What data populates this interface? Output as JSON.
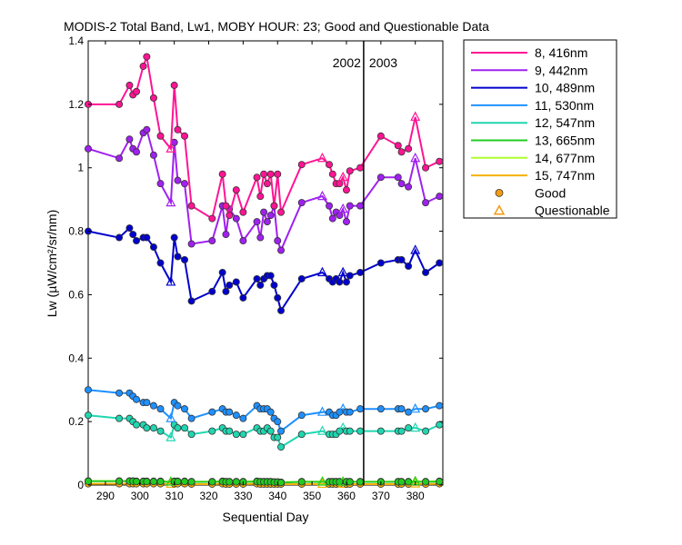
{
  "chart_data": {
    "type": "line",
    "title": "MODIS-2 Total Band,  Lw1, MOBY HOUR: 23;  Good and Questionable Data",
    "xlabel": "Sequential Day",
    "ylabel": "Lw (µW/cm²/sr/nm)",
    "xlim": [
      285,
      388
    ],
    "ylim": [
      0,
      1.4
    ],
    "xticks": [
      290,
      300,
      310,
      320,
      330,
      340,
      350,
      360,
      370,
      380
    ],
    "yticks": [
      0,
      0.2,
      0.4,
      0.6,
      0.8,
      1,
      1.2,
      1.4
    ],
    "ytick_labels": [
      "0",
      "0.2",
      "0.4",
      "0.6",
      "0.8",
      "1",
      "1.2",
      "1.4"
    ],
    "grid": false,
    "legend_position": "outside-right-top",
    "year_boundary": {
      "x": 365,
      "left_label": "2002",
      "right_label": "2003"
    },
    "x": [
      285,
      294,
      297,
      298,
      299,
      301,
      302,
      304,
      306,
      309,
      310,
      311,
      313,
      315,
      321,
      324,
      325,
      326,
      328,
      330,
      334,
      335,
      336,
      337,
      338,
      339,
      340,
      341,
      347,
      353,
      355,
      356,
      357,
      358,
      359,
      360,
      361,
      364,
      370,
      375,
      376,
      378,
      380,
      383,
      387
    ],
    "questionable_x": [
      309,
      353,
      359,
      380
    ],
    "series": [
      {
        "name": "8, 416nm",
        "color": "#ff1493",
        "values": [
          1.2,
          1.2,
          1.26,
          1.23,
          1.24,
          1.32,
          1.35,
          1.22,
          1.1,
          1.06,
          1.26,
          1.12,
          1.1,
          0.88,
          0.84,
          0.98,
          0.88,
          0.85,
          0.93,
          0.86,
          0.97,
          0.91,
          0.98,
          0.95,
          0.98,
          0.88,
          0.98,
          0.86,
          1.01,
          1.03,
          1.01,
          0.98,
          0.95,
          0.95,
          0.97,
          0.93,
          0.99,
          1.0,
          1.1,
          1.07,
          1.05,
          1.06,
          1.16,
          1.0,
          1.02
        ]
      },
      {
        "name": "9, 442nm",
        "color": "#a020f0",
        "values": [
          1.06,
          1.03,
          1.09,
          1.06,
          1.05,
          1.11,
          1.12,
          1.04,
          0.95,
          0.89,
          1.08,
          0.96,
          0.95,
          0.76,
          0.77,
          0.88,
          0.79,
          0.87,
          0.84,
          0.77,
          0.83,
          0.78,
          0.86,
          0.83,
          0.85,
          0.88,
          0.77,
          0.74,
          0.89,
          0.91,
          0.88,
          0.84,
          0.86,
          0.85,
          0.87,
          0.83,
          0.88,
          0.88,
          0.97,
          0.97,
          0.95,
          0.94,
          1.03,
          0.89,
          0.91
        ]
      },
      {
        "name": "10, 489nm",
        "color": "#0000cd",
        "values": [
          0.8,
          0.78,
          0.81,
          0.79,
          0.77,
          0.78,
          0.78,
          0.75,
          0.7,
          0.64,
          0.78,
          0.72,
          0.71,
          0.58,
          0.61,
          0.67,
          0.61,
          0.63,
          0.64,
          0.59,
          0.65,
          0.63,
          0.65,
          0.66,
          0.66,
          0.63,
          0.59,
          0.55,
          0.65,
          0.67,
          0.65,
          0.64,
          0.65,
          0.64,
          0.67,
          0.64,
          0.66,
          0.67,
          0.7,
          0.71,
          0.71,
          0.69,
          0.74,
          0.67,
          0.7
        ]
      },
      {
        "name": "11, 530nm",
        "color": "#1e90ff",
        "values": [
          0.3,
          0.29,
          0.29,
          0.28,
          0.27,
          0.26,
          0.26,
          0.25,
          0.24,
          0.21,
          0.26,
          0.25,
          0.24,
          0.21,
          0.23,
          0.24,
          0.23,
          0.23,
          0.22,
          0.21,
          0.25,
          0.24,
          0.24,
          0.24,
          0.23,
          0.21,
          0.2,
          0.17,
          0.22,
          0.23,
          0.23,
          0.22,
          0.22,
          0.23,
          0.24,
          0.23,
          0.23,
          0.24,
          0.24,
          0.24,
          0.24,
          0.23,
          0.24,
          0.24,
          0.25
        ]
      },
      {
        "name": "12, 547nm",
        "color": "#20d6b0",
        "values": [
          0.22,
          0.21,
          0.21,
          0.2,
          0.19,
          0.19,
          0.18,
          0.18,
          0.17,
          0.15,
          0.19,
          0.18,
          0.18,
          0.16,
          0.17,
          0.18,
          0.17,
          0.17,
          0.16,
          0.16,
          0.18,
          0.17,
          0.17,
          0.18,
          0.17,
          0.15,
          0.15,
          0.12,
          0.16,
          0.17,
          0.16,
          0.16,
          0.16,
          0.17,
          0.18,
          0.17,
          0.17,
          0.17,
          0.17,
          0.17,
          0.17,
          0.18,
          0.18,
          0.17,
          0.19
        ]
      },
      {
        "name": "13, 665nm",
        "color": "#22cc22",
        "values": [
          0.012,
          0.012,
          0.012,
          0.012,
          0.011,
          0.011,
          0.011,
          0.011,
          0.011,
          0.01,
          0.011,
          0.011,
          0.011,
          0.01,
          0.01,
          0.011,
          0.01,
          0.01,
          0.01,
          0.01,
          0.011,
          0.01,
          0.01,
          0.01,
          0.01,
          0.009,
          0.009,
          0.008,
          0.01,
          0.01,
          0.01,
          0.01,
          0.01,
          0.01,
          0.01,
          0.01,
          0.01,
          0.01,
          0.01,
          0.01,
          0.01,
          0.01,
          0.011,
          0.01,
          0.011
        ]
      },
      {
        "name": "14, 677nm",
        "color": "#adff2f",
        "values": [
          0.013,
          0.013,
          0.013,
          0.013,
          0.012,
          0.012,
          0.012,
          0.012,
          0.012,
          0.011,
          0.012,
          0.012,
          0.012,
          0.011,
          0.011,
          0.012,
          0.011,
          0.011,
          0.011,
          0.011,
          0.012,
          0.011,
          0.011,
          0.011,
          0.011,
          0.01,
          0.01,
          0.009,
          0.011,
          0.011,
          0.011,
          0.011,
          0.011,
          0.011,
          0.011,
          0.011,
          0.011,
          0.011,
          0.011,
          0.011,
          0.011,
          0.011,
          0.012,
          0.011,
          0.012
        ]
      },
      {
        "name": "15, 747nm",
        "color": "#f4b000",
        "values": [
          0.004,
          0.004,
          0.004,
          0.004,
          0.004,
          0.004,
          0.004,
          0.004,
          0.004,
          0.003,
          0.004,
          0.004,
          0.004,
          0.003,
          0.003,
          0.004,
          0.003,
          0.003,
          0.003,
          0.003,
          0.004,
          0.003,
          0.003,
          0.003,
          0.003,
          0.003,
          0.003,
          0.003,
          0.003,
          0.003,
          0.003,
          0.003,
          0.003,
          0.003,
          0.003,
          0.003,
          0.003,
          0.003,
          0.003,
          0.003,
          0.003,
          0.003,
          0.004,
          0.003,
          0.004
        ]
      }
    ],
    "marker_legend": [
      {
        "label": "Good",
        "marker": "circle",
        "color": "#f39c12"
      },
      {
        "label": "Questionable",
        "marker": "triangle",
        "color": "#f39c12"
      }
    ]
  }
}
